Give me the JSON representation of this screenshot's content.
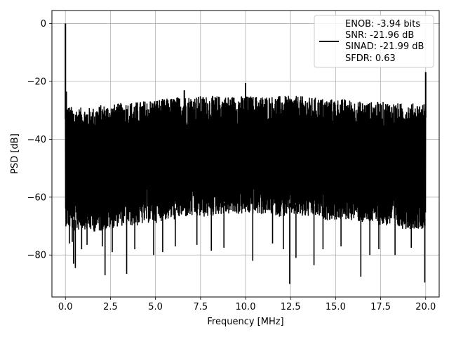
{
  "chart_data": {
    "type": "line",
    "title": "",
    "xlabel": "Frequency [MHz]",
    "ylabel": "PSD [dB]",
    "xlim": [
      -0.75,
      20.75
    ],
    "ylim": [
      -94.5,
      4.5
    ],
    "xticks": [
      0.0,
      2.5,
      5.0,
      7.5,
      10.0,
      12.5,
      15.0,
      17.5,
      20.0
    ],
    "xtick_labels": [
      "0.0",
      "2.5",
      "5.0",
      "7.5",
      "10.0",
      "12.5",
      "15.0",
      "17.5",
      "20.0"
    ],
    "yticks": [
      0,
      -20,
      -40,
      -60,
      -80
    ],
    "ytick_labels": [
      "0",
      "−20",
      "−40",
      "−60",
      "−80"
    ],
    "grid": true,
    "legend_position": "top-right",
    "legend_lines": [
      "ENOB: -3.94 bits",
      "SNR: -21.96 dB",
      "SINAD: -21.99 dB",
      "SFDR: 0.63"
    ],
    "series": [
      {
        "color": "#000000",
        "envelope": {
          "x": [
            0.0,
            0.5,
            1.0,
            1.5,
            2.0,
            2.5,
            3.0,
            3.5,
            4.0,
            4.5,
            5.0,
            5.5,
            6.0,
            6.5,
            7.0,
            7.5,
            8.0,
            8.5,
            9.0,
            9.5,
            10.0,
            10.5,
            11.0,
            11.5,
            12.0,
            12.5,
            13.0,
            13.5,
            14.0,
            14.5,
            15.0,
            15.5,
            16.0,
            16.5,
            17.0,
            17.5,
            18.0,
            18.5,
            19.0,
            19.5,
            20.0
          ],
          "upper": [
            -28,
            -29,
            -29,
            -29,
            -28,
            -28,
            -27.5,
            -27,
            -27,
            -26.5,
            -26,
            -26,
            -25.5,
            -25,
            -25,
            -25,
            -25,
            -25,
            -25,
            -25,
            -25,
            -25,
            -25,
            -25,
            -25,
            -25,
            -25,
            -25.5,
            -25.5,
            -26,
            -26,
            -26,
            -26.5,
            -27,
            -27,
            -27,
            -27,
            -27.5,
            -27.5,
            -27.5,
            -27.5
          ],
          "lower": [
            -70,
            -72,
            -71,
            -72,
            -72,
            -71,
            -70,
            -70,
            -70,
            -69,
            -69,
            -68,
            -68,
            -67,
            -67,
            -67,
            -67,
            -66,
            -66,
            -66,
            -66,
            -66,
            -66,
            -66,
            -67,
            -66,
            -67,
            -67,
            -67,
            -68,
            -68,
            -68,
            -68,
            -69,
            -69,
            -70,
            -70,
            -71,
            -71,
            -71,
            -71
          ]
        },
        "spikes": [
          {
            "x": 0.0,
            "y": 0.0
          },
          {
            "x": 0.05,
            "y": -23.5
          },
          {
            "x": 6.6,
            "y": -23.0
          },
          {
            "x": 10.0,
            "y": -20.5
          },
          {
            "x": 20.0,
            "y": -16.8
          }
        ],
        "dips": [
          {
            "x": 0.22,
            "y": -76.0
          },
          {
            "x": 0.38,
            "y": -75.5
          },
          {
            "x": 0.45,
            "y": -83.0
          },
          {
            "x": 0.55,
            "y": -84.5
          },
          {
            "x": 0.9,
            "y": -78.0
          },
          {
            "x": 1.2,
            "y": -76.5
          },
          {
            "x": 2.05,
            "y": -77.0
          },
          {
            "x": 2.2,
            "y": -87.0
          },
          {
            "x": 2.6,
            "y": -79.0
          },
          {
            "x": 3.4,
            "y": -86.5
          },
          {
            "x": 3.85,
            "y": -78.0
          },
          {
            "x": 4.9,
            "y": -80.0
          },
          {
            "x": 5.4,
            "y": -79.0
          },
          {
            "x": 6.1,
            "y": -77.0
          },
          {
            "x": 7.3,
            "y": -76.5
          },
          {
            "x": 8.1,
            "y": -78.5
          },
          {
            "x": 8.8,
            "y": -77.5
          },
          {
            "x": 10.4,
            "y": -82.0
          },
          {
            "x": 11.5,
            "y": -76.0
          },
          {
            "x": 12.1,
            "y": -78.0
          },
          {
            "x": 12.45,
            "y": -90.0
          },
          {
            "x": 12.8,
            "y": -81.0
          },
          {
            "x": 13.8,
            "y": -83.5
          },
          {
            "x": 14.3,
            "y": -78.0
          },
          {
            "x": 15.3,
            "y": -77.0
          },
          {
            "x": 16.4,
            "y": -87.5
          },
          {
            "x": 16.9,
            "y": -80.0
          },
          {
            "x": 17.4,
            "y": -78.0
          },
          {
            "x": 18.3,
            "y": -80.0
          },
          {
            "x": 19.2,
            "y": -77.5
          },
          {
            "x": 19.95,
            "y": -89.5
          }
        ]
      }
    ]
  }
}
